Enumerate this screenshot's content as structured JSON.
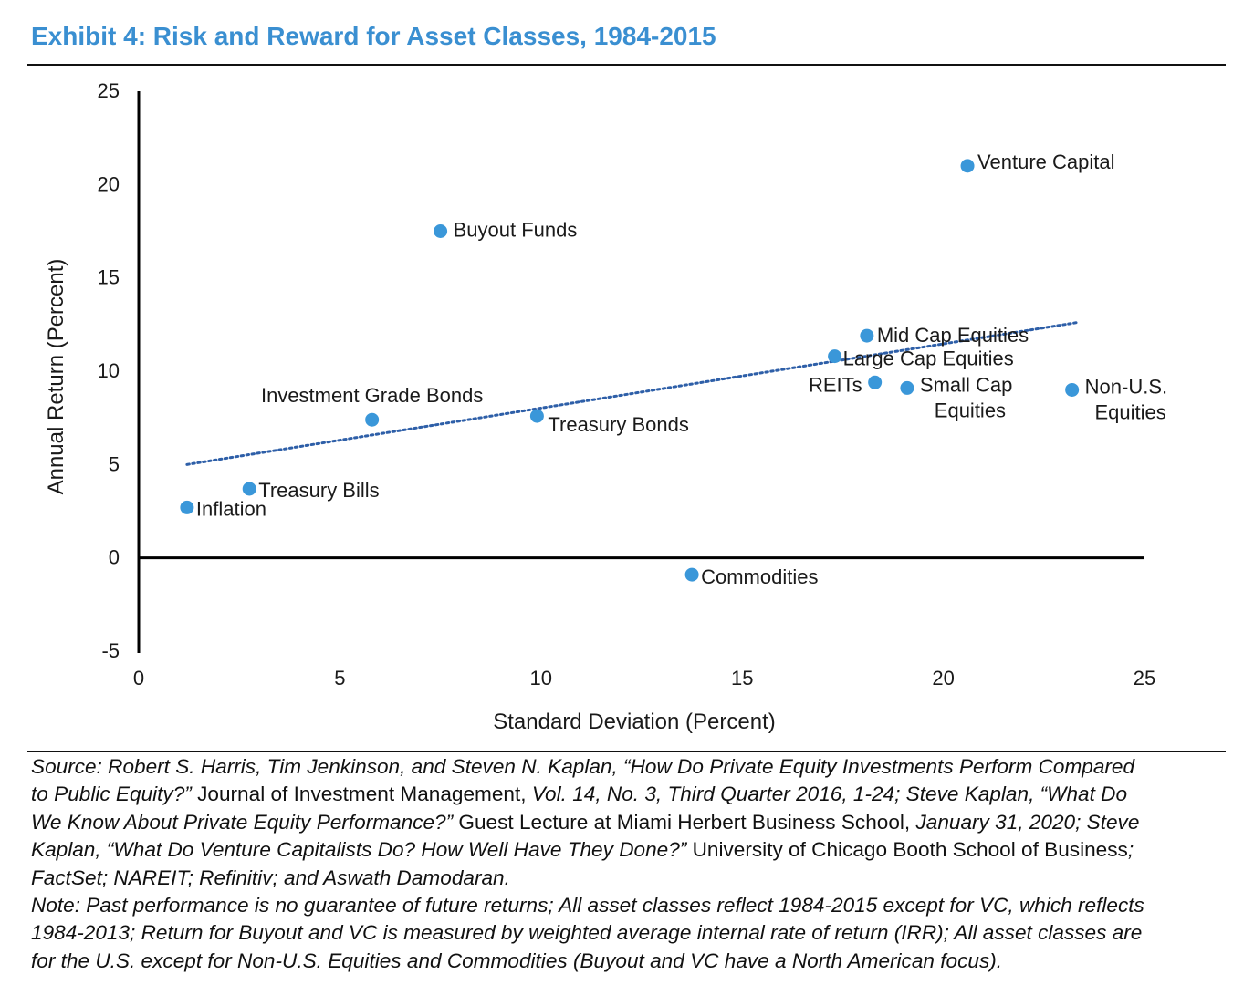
{
  "title": "Exhibit 4: Risk and Reward for Asset Classes, 1984-2015",
  "chart_data": {
    "type": "scatter",
    "xlabel": "Standard Deviation (Percent)",
    "ylabel": "Annual Return (Percent)",
    "xlim": [
      0,
      25
    ],
    "ylim": [
      -5,
      25
    ],
    "x_ticks": [
      "0",
      "5",
      "10",
      "15",
      "20",
      "25"
    ],
    "y_ticks": [
      "-5",
      "0",
      "5",
      "10",
      "15",
      "20",
      "25"
    ],
    "grid": false,
    "point_color": "#3a97d9",
    "trendline": {
      "style": "dotted",
      "color": "#2e5fa8",
      "x": [
        1.2,
        23.3
      ],
      "y": [
        5.0,
        12.6
      ]
    },
    "points": [
      {
        "label": "Inflation",
        "x": 1.2,
        "y": 2.7
      },
      {
        "label": "Treasury Bills",
        "x": 2.75,
        "y": 3.7
      },
      {
        "label": "Investment Grade Bonds",
        "x": 5.8,
        "y": 7.4
      },
      {
        "label": "Buyout Funds",
        "x": 7.5,
        "y": 17.5
      },
      {
        "label": "Treasury Bonds",
        "x": 9.9,
        "y": 7.6
      },
      {
        "label": "Commodities",
        "x": 13.75,
        "y": -0.9
      },
      {
        "label": "Large Cap Equities",
        "x": 17.3,
        "y": 10.8
      },
      {
        "label": "Mid Cap Equities",
        "x": 18.1,
        "y": 11.9
      },
      {
        "label": "REITs",
        "x": 18.3,
        "y": 9.4
      },
      {
        "label": "Small Cap Equities",
        "x": 19.1,
        "y": 9.1
      },
      {
        "label": "Venture Capital",
        "x": 20.6,
        "y": 21.0
      },
      {
        "label": "Non-U.S. Equities",
        "x": 23.2,
        "y": 9.0
      }
    ]
  },
  "footnote": {
    "source_lines": [
      [
        [
          "i",
          "Source: Robert S. Harris, Tim Jenkinson, and Steven N. Kaplan, “How Do Private Equity Investments Perform Compared"
        ]
      ],
      [
        [
          "i",
          "to Public Equity?”"
        ],
        [
          "n",
          " Journal of Investment Management, "
        ],
        [
          "i",
          "Vol. 14, No. 3, Third Quarter 2016, 1-24; Steve Kaplan, “What Do"
        ]
      ],
      [
        [
          "i",
          "We Know About Private Equity Performance?”"
        ],
        [
          "n",
          " Guest Lecture at Miami Herbert Business School, "
        ],
        [
          "i",
          "January 31, 2020; Steve"
        ]
      ],
      [
        [
          "i",
          "Kaplan, “What Do Venture Capitalists Do? How Well Have They Done?”"
        ],
        [
          "n",
          " University of Chicago Booth School of Business"
        ],
        [
          "i",
          ";"
        ]
      ],
      [
        [
          "i",
          "FactSet; NAREIT; Refinitiv; and Aswath Damodaran."
        ]
      ]
    ],
    "note_lines": [
      "Note: Past performance is no guarantee of future returns; All asset classes reflect 1984-2015 except for VC, which reflects",
      "1984-2013; Return for Buyout and VC is measured by weighted average internal rate of return (IRR); All asset classes are",
      "for the U.S. except for Non-U.S. Equities and Commodities (Buyout and VC have a North American focus)."
    ]
  }
}
